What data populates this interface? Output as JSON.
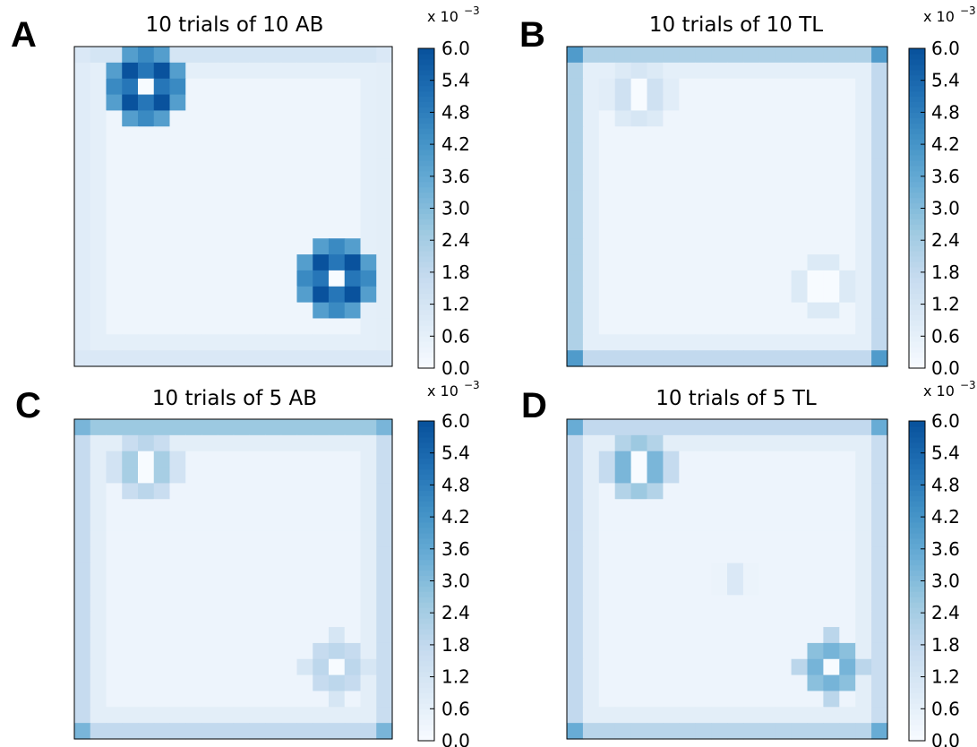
{
  "figure": {
    "colormap": [
      "#f7fbff",
      "#deebf7",
      "#c6dbef",
      "#9ecae1",
      "#6baed6",
      "#4292c6",
      "#2171b5",
      "#08519c"
    ]
  },
  "chart_data": [
    {
      "type": "heatmap",
      "panel_label": "A",
      "title": "10 trials of 10 AB",
      "grid_size": [
        20,
        20
      ],
      "colorbar": {
        "min": 0.0,
        "max": 6.0,
        "ticks": [
          "0.0",
          "0.6",
          "1.2",
          "1.8",
          "2.4",
          "3.0",
          "3.6",
          "4.2",
          "4.8",
          "5.4",
          "6.0"
        ],
        "multiplier": "x 10",
        "multiplier_exp": "−3"
      },
      "background_level": 0.3,
      "edge": {
        "top": 1.2,
        "bottom": 1.0,
        "left": 0.8,
        "right": 0.7,
        "corner": 1.0
      },
      "hotspots": [
        {
          "row": 2.5,
          "col": 4.5,
          "center": 0.0,
          "ring": 6.0,
          "radius": 1.8
        },
        {
          "row": 14.5,
          "col": 16.5,
          "center": 0.0,
          "ring": 6.0,
          "radius": 1.8
        }
      ]
    },
    {
      "type": "heatmap",
      "panel_label": "B",
      "title": "10 trials of 10 TL",
      "grid_size": [
        20,
        20
      ],
      "colorbar": {
        "min": 0.0,
        "max": 6.0,
        "ticks": [
          "0.0",
          "0.6",
          "1.2",
          "1.8",
          "2.4",
          "3.0",
          "3.6",
          "4.2",
          "4.8",
          "5.4",
          "6.0"
        ],
        "multiplier": "x 10",
        "multiplier_exp": "−3"
      },
      "background_level": 0.3,
      "edge": {
        "top": 2.2,
        "bottom": 1.8,
        "left": 2.2,
        "right": 1.8,
        "corner": 4.0
      },
      "hotspots": [
        {
          "row": 3.0,
          "col": 4.5,
          "center": 0.0,
          "ring": 1.4,
          "radius": 1.5
        },
        {
          "row": 15.0,
          "col": 16.0,
          "center": 0.0,
          "ring": 1.2,
          "radius": 1.5
        }
      ]
    },
    {
      "type": "heatmap",
      "panel_label": "C",
      "title": "10 trials of 5 AB",
      "grid_size": [
        20,
        20
      ],
      "colorbar": {
        "min": 0.0,
        "max": 6.0,
        "ticks": [
          "0.0",
          "0.6",
          "1.2",
          "1.8",
          "2.4",
          "3.0",
          "3.6",
          "4.2",
          "4.8",
          "5.4",
          "6.0"
        ],
        "multiplier": "x 10",
        "multiplier_exp": "−3"
      },
      "background_level": 0.35,
      "edge": {
        "top": 2.6,
        "bottom": 1.8,
        "left": 1.7,
        "right": 1.6,
        "corner": 3.2
      },
      "hotspots": [
        {
          "row": 3.0,
          "col": 4.5,
          "center": 0.0,
          "ring": 2.4,
          "radius": 1.5
        },
        {
          "row": 15.5,
          "col": 16.5,
          "center": 0.0,
          "ring": 2.0,
          "radius": 1.5
        }
      ]
    },
    {
      "type": "heatmap",
      "panel_label": "D",
      "title": "10 trials of 5 TL",
      "grid_size": [
        20,
        20
      ],
      "colorbar": {
        "min": 0.0,
        "max": 6.0,
        "ticks": [
          "0.0",
          "0.6",
          "1.2",
          "1.8",
          "2.4",
          "3.0",
          "3.6",
          "4.2",
          "4.8",
          "5.4",
          "6.0"
        ],
        "multiplier": "x 10",
        "multiplier_exp": "−3"
      },
      "background_level": 0.35,
      "edge": {
        "top": 1.8,
        "bottom": 2.0,
        "left": 1.8,
        "right": 1.6,
        "corner": 3.5
      },
      "hotspots": [
        {
          "row": 3.0,
          "col": 4.5,
          "center": 0.0,
          "ring": 3.2,
          "radius": 1.5
        },
        {
          "row": 15.5,
          "col": 16.5,
          "center": 0.0,
          "ring": 3.4,
          "radius": 1.5
        },
        {
          "row": 10.0,
          "col": 10.5,
          "center": 1.0,
          "ring": 0.6,
          "radius": 1.0
        }
      ]
    }
  ]
}
